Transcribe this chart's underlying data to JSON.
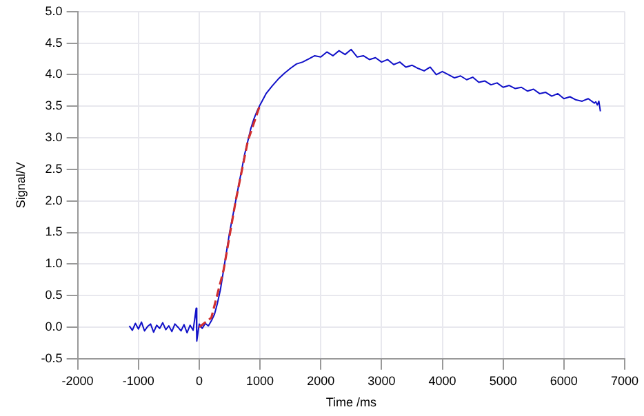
{
  "chart_data": {
    "type": "line",
    "xlabel": "Time /ms",
    "ylabel": "Signal/V",
    "xlim": [
      -2000,
      7000
    ],
    "ylim": [
      -0.5,
      5.0
    ],
    "xticks": [
      -2000,
      -1000,
      0,
      1000,
      2000,
      3000,
      4000,
      5000,
      6000,
      7000
    ],
    "yticks": [
      {
        "value": -0.5,
        "label": "-0.5"
      },
      {
        "value": 0,
        "label": "0.0"
      },
      {
        "value": 0.5,
        "label": "0.5"
      },
      {
        "value": 1,
        "label": "1.0"
      },
      {
        "value": 1.5,
        "label": "1.5"
      },
      {
        "value": 2,
        "label": "2.0"
      },
      {
        "value": 2.5,
        "label": "2.5"
      },
      {
        "value": 3,
        "label": "3.0"
      },
      {
        "value": 3.5,
        "label": "3.5"
      },
      {
        "value": 4,
        "label": "4.0"
      },
      {
        "value": 4.5,
        "label": "4.5"
      },
      {
        "value": 5,
        "label": "5.0"
      }
    ],
    "grid": true,
    "legend": false,
    "marker": "none",
    "series": [
      {
        "color": "#1010c8",
        "line_style": "solid",
        "x": [
          -1150,
          -1100,
          -1050,
          -1000,
          -950,
          -900,
          -850,
          -800,
          -750,
          -700,
          -650,
          -600,
          -550,
          -500,
          -450,
          -400,
          -350,
          -300,
          -250,
          -200,
          -150,
          -100,
          -50,
          -40,
          0,
          50,
          100,
          150,
          200,
          250,
          300,
          350,
          400,
          450,
          500,
          550,
          600,
          650,
          700,
          750,
          800,
          850,
          900,
          950,
          1000,
          1100,
          1200,
          1300,
          1400,
          1500,
          1600,
          1700,
          1800,
          1900,
          2000,
          2100,
          2200,
          2300,
          2400,
          2500,
          2600,
          2700,
          2800,
          2900,
          3000,
          3100,
          3200,
          3300,
          3400,
          3500,
          3600,
          3700,
          3800,
          3900,
          4000,
          4100,
          4200,
          4300,
          4400,
          4500,
          4600,
          4700,
          4800,
          4900,
          5000,
          5100,
          5200,
          5300,
          5400,
          5500,
          5600,
          5700,
          5800,
          5900,
          6000,
          6100,
          6200,
          6300,
          6400,
          6500,
          6525,
          6550,
          6575,
          6600
        ],
        "values": [
          0.02,
          -0.05,
          0.06,
          -0.03,
          0.08,
          -0.06,
          0.01,
          0.05,
          -0.08,
          0.03,
          -0.02,
          0.07,
          -0.04,
          0.02,
          -0.07,
          0.05,
          0,
          -0.06,
          0.04,
          -0.09,
          0.03,
          -0.05,
          0.3,
          -0.22,
          0.05,
          -0.02,
          0.06,
          0.02,
          0.1,
          0.2,
          0.38,
          0.6,
          0.9,
          1.2,
          1.5,
          1.75,
          2.0,
          2.25,
          2.5,
          2.75,
          2.95,
          3.15,
          3.3,
          3.42,
          3.52,
          3.7,
          3.82,
          3.93,
          4.02,
          4.1,
          4.17,
          4.2,
          4.25,
          4.3,
          4.28,
          4.36,
          4.3,
          4.38,
          4.32,
          4.4,
          4.28,
          4.3,
          4.24,
          4.27,
          4.2,
          4.24,
          4.16,
          4.2,
          4.12,
          4.15,
          4.1,
          4.06,
          4.12,
          4.0,
          4.05,
          4.0,
          3.95,
          3.98,
          3.92,
          3.96,
          3.88,
          3.9,
          3.84,
          3.87,
          3.8,
          3.83,
          3.78,
          3.8,
          3.74,
          3.77,
          3.7,
          3.72,
          3.66,
          3.7,
          3.62,
          3.65,
          3.6,
          3.58,
          3.62,
          3.55,
          3.57,
          3.52,
          3.58,
          3.42
        ]
      },
      {
        "color": "#d03030",
        "line_style": "dashed",
        "x": [
          0,
          200,
          400,
          600,
          800,
          1000
        ],
        "values": [
          0.0,
          0.15,
          0.9,
          2.0,
          2.95,
          3.52
        ]
      }
    ]
  }
}
